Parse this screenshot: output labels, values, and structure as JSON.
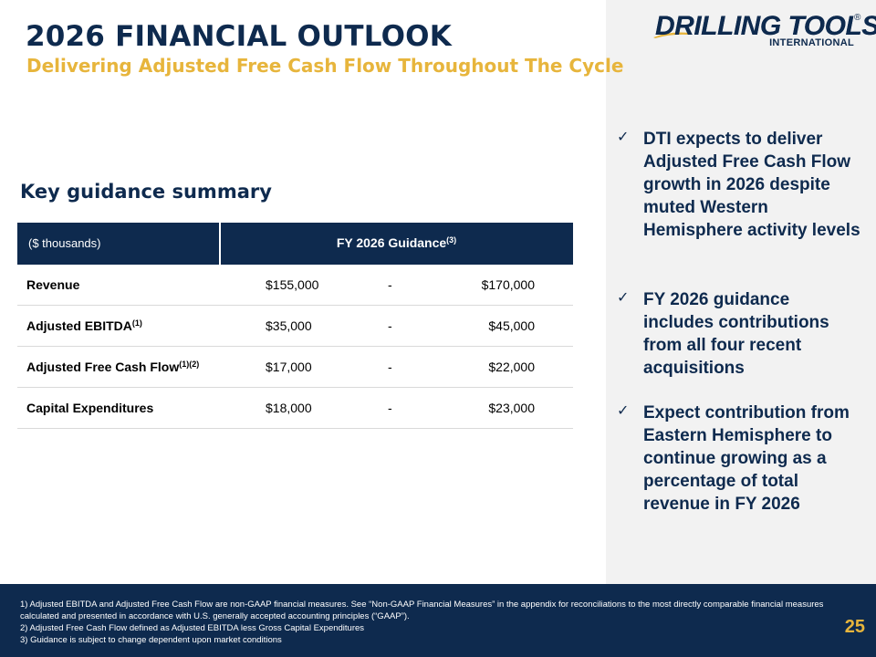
{
  "header": {
    "title": "2026 FINANCIAL OUTLOOK",
    "subtitle": "Delivering Adjusted Free Cash Flow Throughout The Cycle"
  },
  "logo": {
    "name": "DRILLING TOOLS",
    "sub": "INTERNATIONAL",
    "registered": "®"
  },
  "section": {
    "heading": "Key guidance summary"
  },
  "table": {
    "units_header": "($ thousands)",
    "guidance_header": "FY 2026 Guidance",
    "guidance_header_note": "(3)",
    "rows": [
      {
        "metric": "Revenue",
        "note": "",
        "low": "$155,000",
        "sep": "-",
        "high": "$170,000"
      },
      {
        "metric": "Adjusted EBITDA",
        "note": "(1)",
        "low": "$35,000",
        "sep": "-",
        "high": "$45,000"
      },
      {
        "metric": "Adjusted Free Cash Flow",
        "note": "(1)(2)",
        "low": "$17,000",
        "sep": "-",
        "high": "$22,000"
      },
      {
        "metric": "Capital Expenditures",
        "note": "",
        "low": "$18,000",
        "sep": "-",
        "high": "$23,000"
      }
    ]
  },
  "bullets": [
    "DTI expects to deliver Adjusted Free Cash Flow growth in 2026 despite muted Western Hemisphere activity levels",
    "FY 2026 guidance includes contributions from all four recent acquisitions",
    "Expect contribution from Eastern Hemisphere to continue growing as a percentage of total revenue in FY 2026"
  ],
  "check_glyph": "✓",
  "footer": {
    "notes": [
      "1) Adjusted EBITDA and Adjusted Free Cash Flow are non-GAAP financial measures. See “Non-GAAP Financial Measures” in the appendix for reconciliations to the most directly comparable financial measures calculated and presented in accordance with U.S. generally accepted accounting principles (“GAAP”).",
      "2) Adjusted Free Cash Flow defined as Adjusted EBITDA less Gross Capital Expenditures",
      "3) Guidance is subject to change dependent upon market conditions"
    ],
    "page_number": "25"
  },
  "colors": {
    "navy": "#0e2a4e",
    "gold": "#e7b53c",
    "panel": "#f2f2f2"
  }
}
